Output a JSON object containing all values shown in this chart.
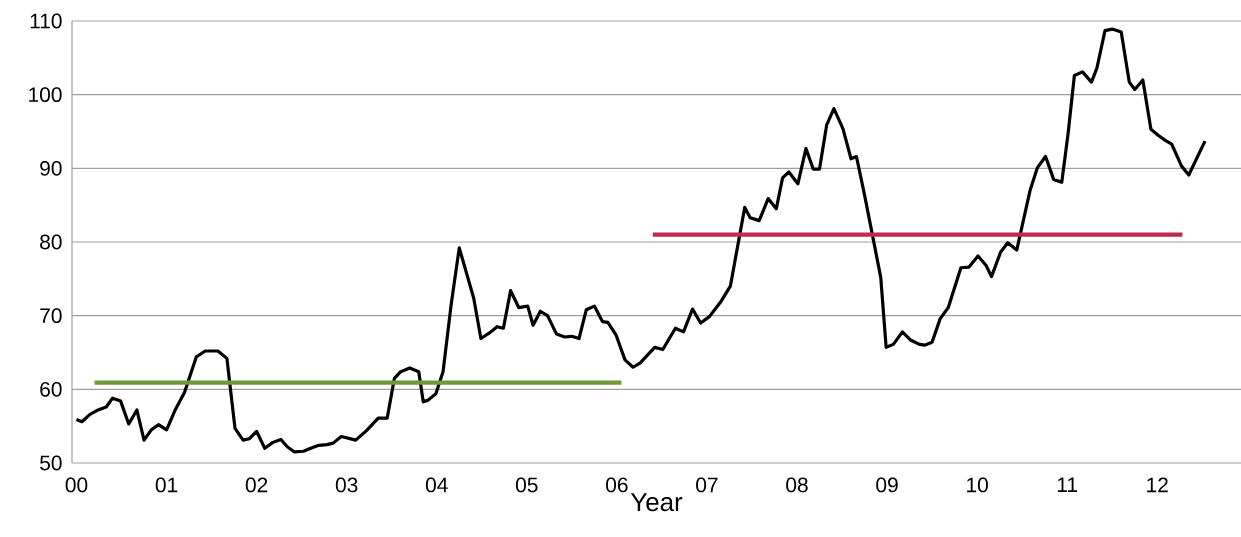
{
  "chart_data": {
    "type": "line",
    "xlabel": "Year",
    "xlim": [
      -0.05,
      12.93
    ],
    "ylim": [
      50,
      110
    ],
    "xticks": [
      {
        "value": 0,
        "label": "00"
      },
      {
        "value": 1,
        "label": "01"
      },
      {
        "value": 2,
        "label": "02"
      },
      {
        "value": 3,
        "label": "03"
      },
      {
        "value": 4,
        "label": "04"
      },
      {
        "value": 5,
        "label": "05"
      },
      {
        "value": 6,
        "label": "06"
      },
      {
        "value": 7,
        "label": "07"
      },
      {
        "value": 8,
        "label": "08"
      },
      {
        "value": 9,
        "label": "09"
      },
      {
        "value": 10,
        "label": "10"
      },
      {
        "value": 11,
        "label": "11"
      },
      {
        "value": 12,
        "label": "12"
      }
    ],
    "yticks": [
      50,
      60,
      70,
      80,
      90,
      100,
      110
    ],
    "grid": "y",
    "series": [
      {
        "color": "#000000",
        "x": [
          0,
          0.06,
          0.15,
          0.24,
          0.33,
          0.4,
          0.49,
          0.58,
          0.67,
          0.75,
          0.83,
          0.91,
          1.0,
          1.1,
          1.2,
          1.33,
          1.43,
          1.57,
          1.67,
          1.76,
          1.85,
          1.92,
          2.0,
          2.09,
          2.18,
          2.27,
          2.34,
          2.42,
          2.52,
          2.6,
          2.69,
          2.78,
          2.85,
          2.94,
          3.1,
          3.22,
          3.35,
          3.45,
          3.53,
          3.6,
          3.7,
          3.8,
          3.85,
          3.9,
          3.99,
          4.07,
          4.16,
          4.25,
          4.41,
          4.49,
          4.59,
          4.67,
          4.74,
          4.82,
          4.91,
          5.01,
          5.07,
          5.15,
          5.23,
          5.33,
          5.42,
          5.5,
          5.58,
          5.66,
          5.75,
          5.84,
          5.9,
          5.99,
          6.09,
          6.18,
          6.26,
          6.42,
          6.51,
          6.65,
          6.74,
          6.84,
          6.93,
          7.03,
          7.16,
          7.26,
          7.42,
          7.48,
          7.58,
          7.68,
          7.77,
          7.84,
          7.91,
          8.01,
          8.1,
          8.18,
          8.25,
          8.33,
          8.41,
          8.51,
          8.6,
          8.66,
          8.75,
          8.84,
          8.93,
          8.99,
          9.07,
          9.17,
          9.26,
          9.36,
          9.42,
          9.5,
          9.59,
          9.68,
          9.82,
          9.91,
          10.01,
          10.1,
          10.16,
          10.26,
          10.34,
          10.44,
          10.5,
          10.59,
          10.67,
          10.76,
          10.85,
          10.94,
          11.01,
          11.08,
          11.17,
          11.27,
          11.33,
          11.42,
          11.5,
          11.6,
          11.69,
          11.75,
          11.84,
          11.93,
          12.01,
          12.09,
          12.16,
          12.27,
          12.35,
          12.53
        ],
        "values": [
          55.9,
          55.6,
          56.6,
          57.2,
          57.6,
          58.8,
          58.4,
          55.3,
          57.2,
          53.1,
          54.5,
          55.2,
          54.5,
          57.3,
          59.6,
          64.4,
          65.2,
          65.2,
          64.2,
          54.7,
          53.1,
          53.3,
          54.3,
          52.0,
          52.8,
          53.2,
          52.2,
          51.5,
          51.6,
          52.0,
          52.4,
          52.5,
          52.7,
          53.6,
          53.1,
          54.4,
          56.1,
          56.1,
          61.5,
          62.4,
          62.9,
          62.4,
          58.3,
          58.5,
          59.4,
          62.4,
          71.5,
          79.2,
          72.4,
          66.9,
          67.7,
          68.5,
          68.3,
          73.4,
          71.1,
          71.3,
          68.7,
          70.6,
          70.0,
          67.5,
          67.1,
          67.2,
          66.9,
          70.8,
          71.3,
          69.2,
          69.1,
          67.4,
          64.0,
          63.0,
          63.6,
          65.7,
          65.4,
          68.3,
          67.8,
          70.9,
          69.0,
          69.9,
          72.0,
          74.0,
          84.7,
          83.3,
          82.9,
          85.9,
          84.5,
          88.7,
          89.5,
          87.9,
          92.7,
          89.9,
          89.9,
          95.9,
          98.1,
          95.4,
          91.3,
          91.6,
          86.4,
          80.8,
          75.2,
          65.7,
          66.1,
          67.8,
          66.7,
          66.1,
          66.0,
          66.4,
          69.6,
          71.1,
          76.5,
          76.6,
          78.1,
          76.8,
          75.3,
          78.6,
          79.9,
          78.9,
          82.2,
          87.1,
          90.1,
          91.6,
          88.5,
          88.1,
          94.7,
          102.6,
          103.1,
          101.7,
          103.6,
          108.7,
          108.9,
          108.5,
          101.7,
          100.7,
          102.0,
          95.3,
          94.5,
          93.8,
          93.3,
          90.3,
          89.1,
          93.7
        ]
      },
      {
        "type": "line",
        "color": "#6e9a3c",
        "x": [
          0.2,
          6.05
        ],
        "values": [
          60.9,
          60.9
        ]
      },
      {
        "type": "line",
        "color": "#c0284f",
        "x": [
          6.4,
          12.28
        ],
        "values": [
          81.0,
          81.0
        ]
      }
    ]
  }
}
